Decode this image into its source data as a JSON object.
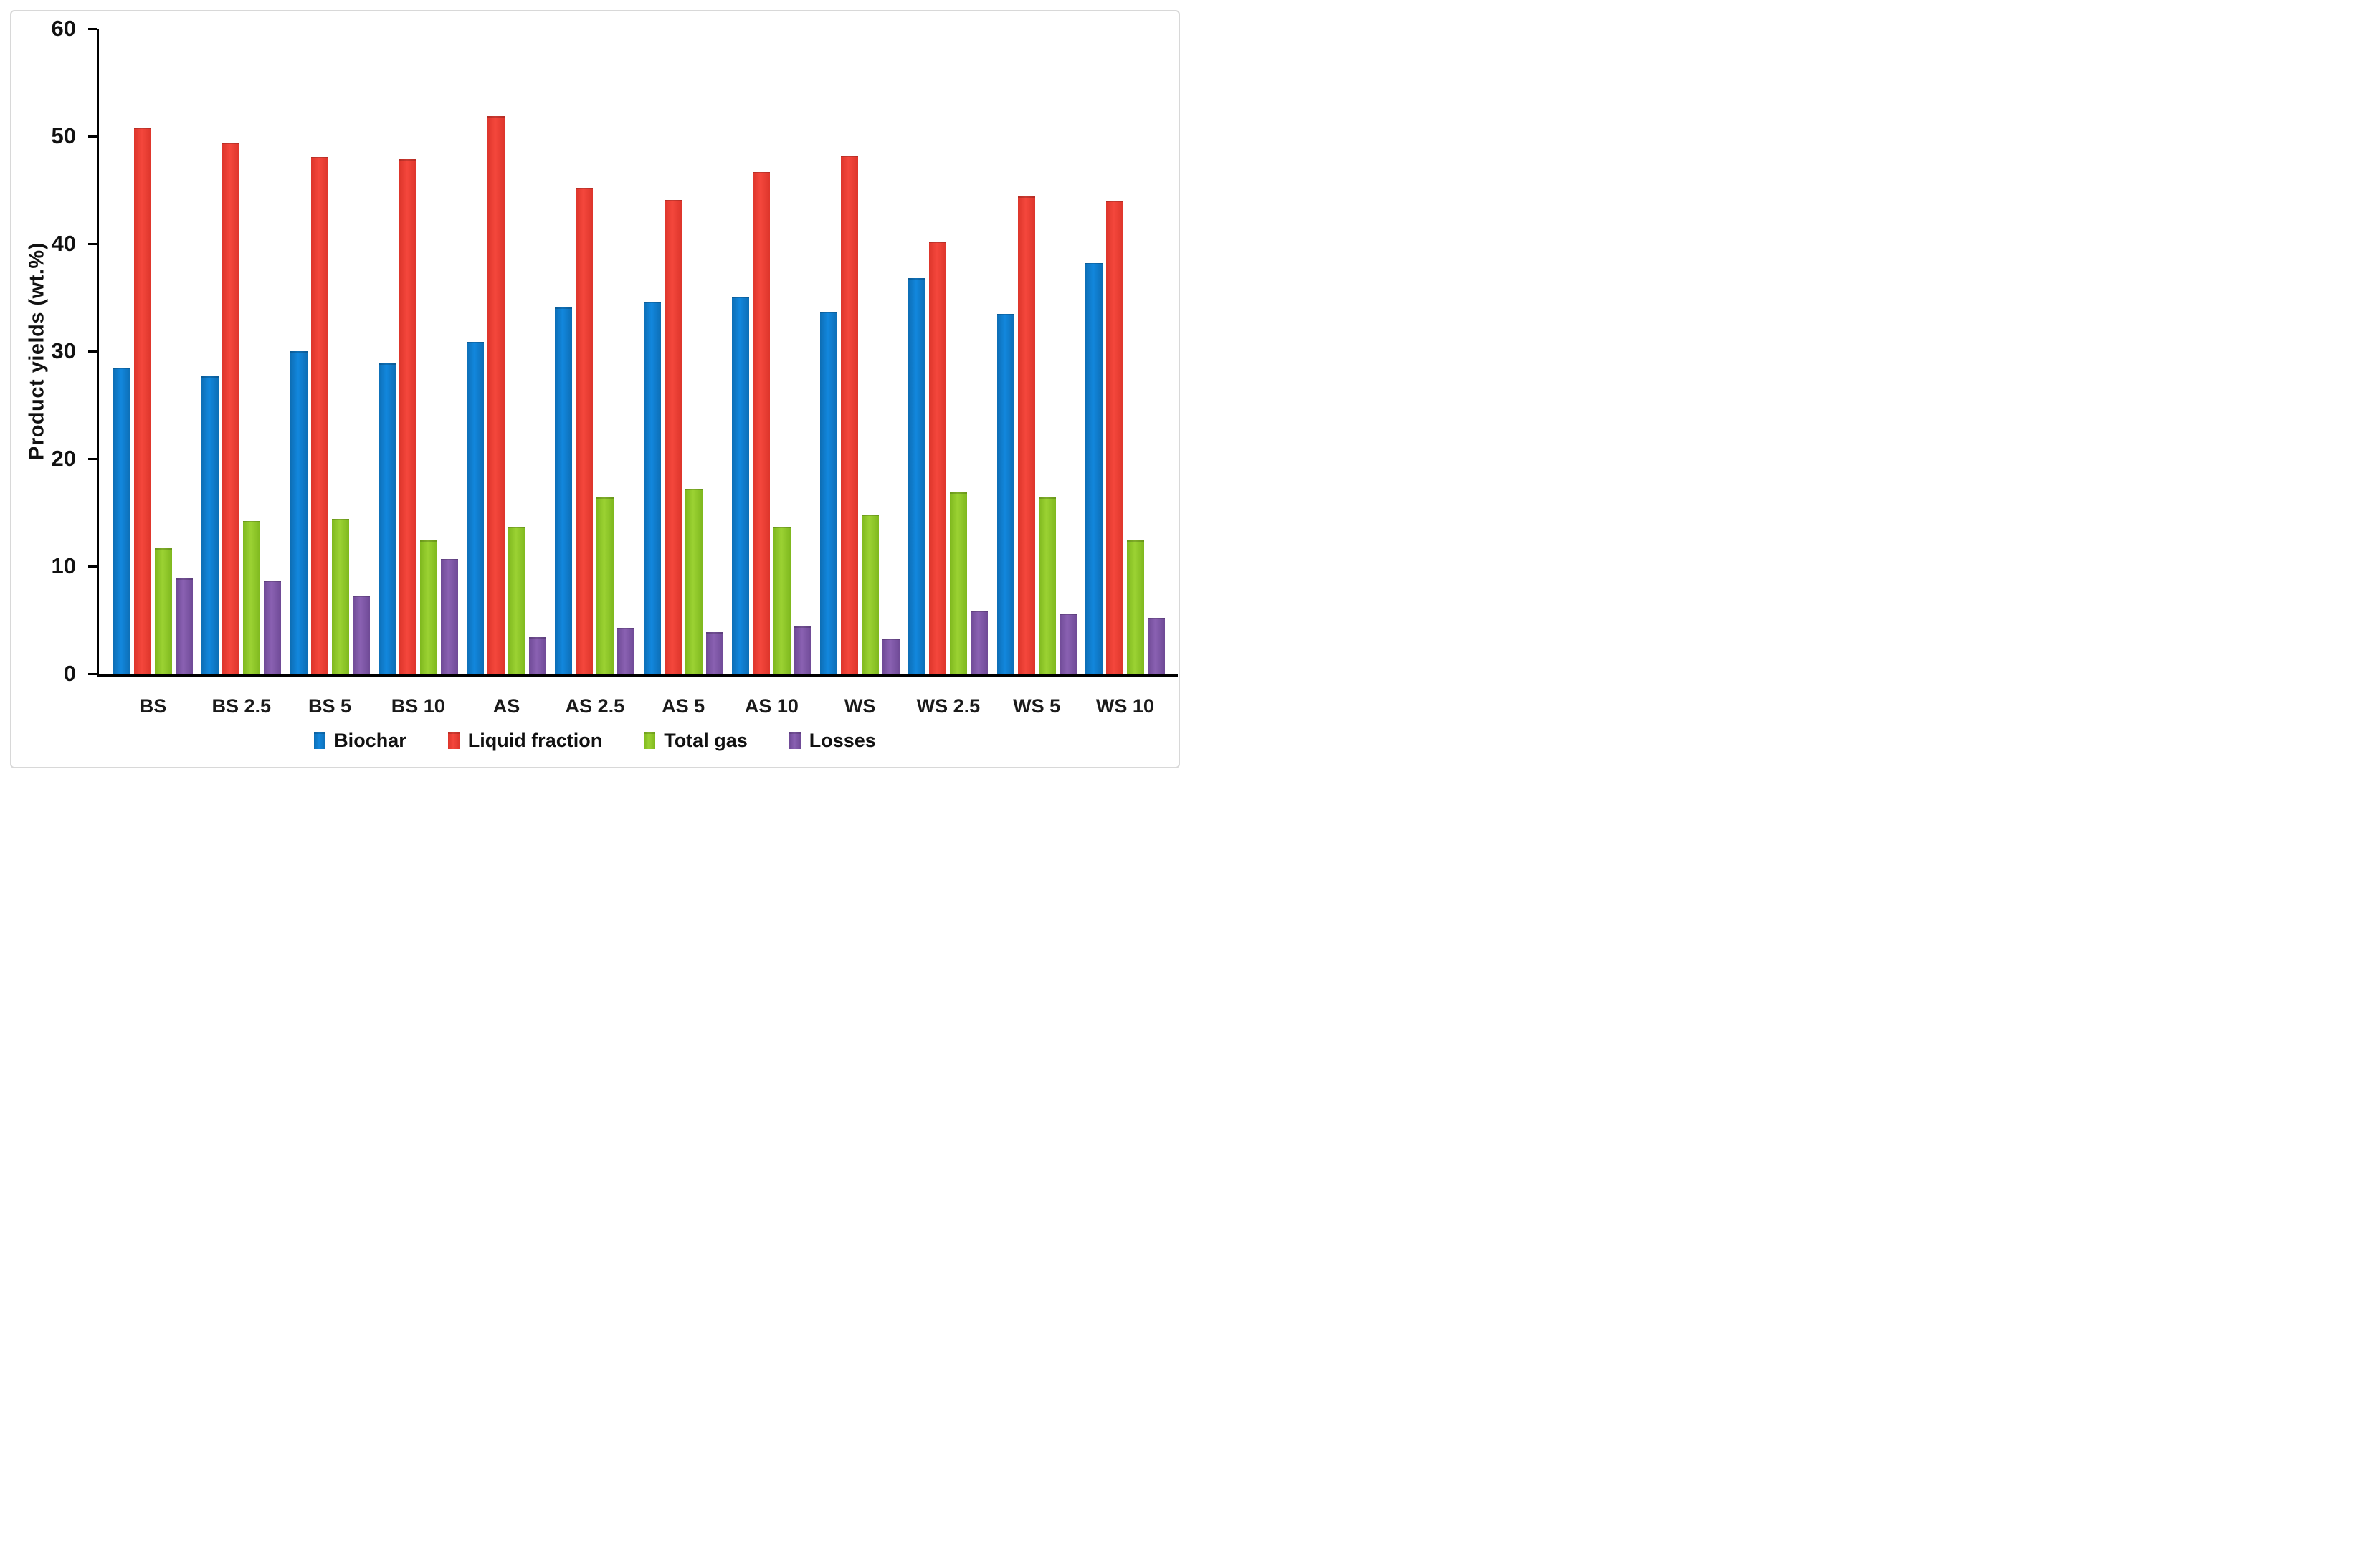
{
  "figure": {
    "background": "#ffffff",
    "frame_border_color": "#d8d8d8",
    "axis_color": "#000000"
  },
  "chart_data": {
    "type": "bar",
    "title": "",
    "xlabel": "",
    "ylabel": "Product yields (wt.%)",
    "ylim": [
      0,
      60
    ],
    "yticks": [
      0,
      10,
      20,
      30,
      40,
      50,
      60
    ],
    "grid": false,
    "legend_position": "bottom",
    "categories": [
      "BS",
      "BS 2.5",
      "BS 5",
      "BS 10",
      "AS",
      "AS 2.5",
      "AS 5",
      "AS 10",
      "WS",
      "WS 2.5",
      "WS 5",
      "WS 10"
    ],
    "series": [
      {
        "name": "Biochar",
        "color": "#1287dd",
        "edge_color": "#0d6eb5",
        "values": [
          28.5,
          27.7,
          30.0,
          28.9,
          30.9,
          34.1,
          34.6,
          35.1,
          33.7,
          36.8,
          33.5,
          38.2
        ]
      },
      {
        "name": "Liquid fraction",
        "color": "#f4473c",
        "edge_color": "#dd352b",
        "values": [
          50.8,
          49.4,
          48.1,
          47.9,
          51.9,
          45.2,
          44.1,
          46.7,
          48.2,
          40.2,
          44.4,
          44.0
        ]
      },
      {
        "name": "Total gas",
        "color": "#9bd233",
        "edge_color": "#7fb81e",
        "values": [
          11.7,
          14.2,
          14.4,
          12.4,
          13.7,
          16.4,
          17.2,
          13.7,
          14.8,
          16.9,
          16.4,
          12.4
        ]
      },
      {
        "name": "Losses",
        "color": "#8a61b2",
        "edge_color": "#6f4a96",
        "values": [
          8.9,
          8.7,
          7.3,
          10.7,
          3.4,
          4.3,
          3.9,
          4.4,
          3.3,
          5.9,
          5.6,
          5.2
        ]
      }
    ]
  }
}
